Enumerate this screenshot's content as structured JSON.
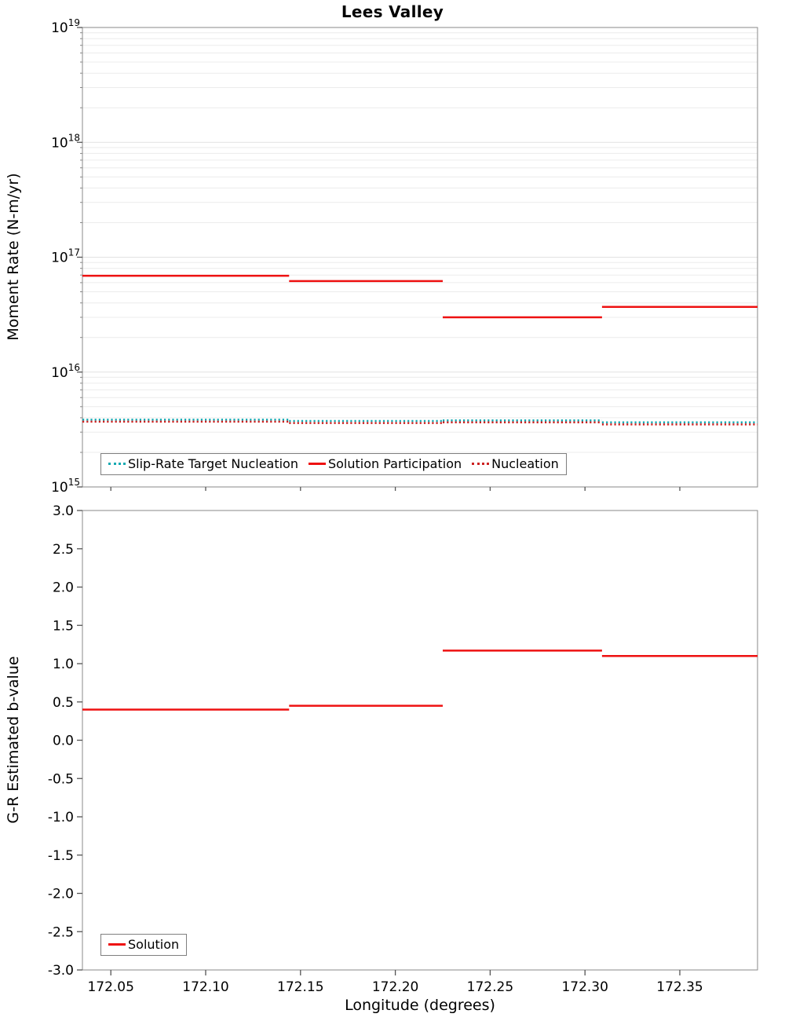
{
  "page": {
    "title": "Lees Valley"
  },
  "chart_data": [
    {
      "type": "line",
      "title": "Lees Valley",
      "ylabel": "Moment Rate (N-m/yr)",
      "yscale": "log",
      "ylim_exp": [
        15,
        19
      ],
      "xlim": [
        172.035,
        172.391
      ],
      "grid": true,
      "legend_position": "bottom-left",
      "xtick_values": [
        172.05,
        172.1,
        172.15,
        172.2,
        172.25,
        172.3,
        172.35
      ],
      "xtick_labels": [
        "172.05",
        "172.10",
        "172.15",
        "172.20",
        "172.25",
        "172.30",
        "172.35"
      ],
      "series": [
        {
          "name": "Slip-Rate Target Nucleation",
          "color": "#15aab2",
          "style": "dotted",
          "steps": [
            {
              "x0": 172.035,
              "x1": 172.144,
              "y": 3850000000000000.0
            },
            {
              "x0": 172.144,
              "x1": 172.225,
              "y": 3750000000000000.0
            },
            {
              "x0": 172.225,
              "x1": 172.309,
              "y": 3800000000000000.0
            },
            {
              "x0": 172.309,
              "x1": 172.391,
              "y": 3650000000000000.0
            }
          ]
        },
        {
          "name": "Solution Participation",
          "color": "#ee1111",
          "style": "solid",
          "steps": [
            {
              "x0": 172.035,
              "x1": 172.144,
              "y": 6.9e+16
            },
            {
              "x0": 172.144,
              "x1": 172.225,
              "y": 6.2e+16
            },
            {
              "x0": 172.225,
              "x1": 172.309,
              "y": 3e+16
            },
            {
              "x0": 172.309,
              "x1": 172.391,
              "y": 3.7e+16
            }
          ]
        },
        {
          "name": "Nucleation",
          "color": "#cc2222",
          "style": "dotted",
          "steps": [
            {
              "x0": 172.035,
              "x1": 172.144,
              "y": 3700000000000000.0
            },
            {
              "x0": 172.144,
              "x1": 172.225,
              "y": 3600000000000000.0
            },
            {
              "x0": 172.225,
              "x1": 172.309,
              "y": 3650000000000000.0
            },
            {
              "x0": 172.309,
              "x1": 172.391,
              "y": 3500000000000000.0
            }
          ]
        }
      ]
    },
    {
      "type": "line",
      "ylabel": "G-R Estimated b-value",
      "xlabel": "Longitude (degrees)",
      "yscale": "linear",
      "ylim": [
        -3.0,
        3.0
      ],
      "xlim": [
        172.035,
        172.391
      ],
      "grid": false,
      "legend_position": "bottom-left",
      "ytick_values": [
        3.0,
        2.5,
        2.0,
        1.5,
        1.0,
        0.5,
        0.0,
        -0.5,
        -1.0,
        -1.5,
        -2.0,
        -2.5,
        -3.0
      ],
      "ytick_labels": [
        "3.0",
        "2.5",
        "2.0",
        "1.5",
        "1.0",
        "0.5",
        "0.0",
        "-0.5",
        "-1.0",
        "-1.5",
        "-2.0",
        "-2.5",
        "-3.0"
      ],
      "xtick_values": [
        172.05,
        172.1,
        172.15,
        172.2,
        172.25,
        172.3,
        172.35
      ],
      "xtick_labels": [
        "172.05",
        "172.10",
        "172.15",
        "172.20",
        "172.25",
        "172.30",
        "172.35"
      ],
      "series": [
        {
          "name": "Solution",
          "color": "#ee1111",
          "style": "solid",
          "steps": [
            {
              "x0": 172.035,
              "x1": 172.144,
              "y": 0.4
            },
            {
              "x0": 172.144,
              "x1": 172.225,
              "y": 0.45
            },
            {
              "x0": 172.225,
              "x1": 172.309,
              "y": 1.17
            },
            {
              "x0": 172.309,
              "x1": 172.391,
              "y": 1.1
            }
          ]
        }
      ]
    }
  ]
}
